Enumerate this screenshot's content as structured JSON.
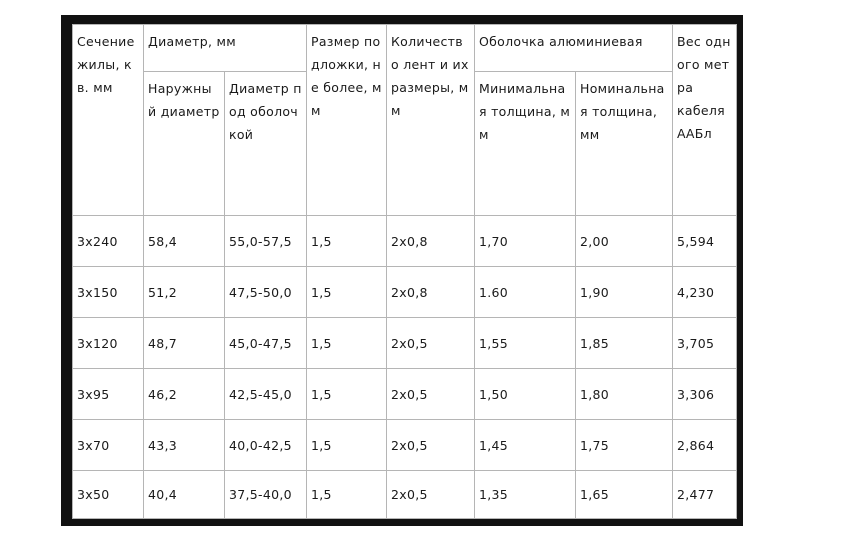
{
  "table": {
    "headers": {
      "section": "Сечение жилы, кв. мм",
      "diameter": "Диаметр, мм",
      "outer_diameter": "Наружный диаметр",
      "diameter_under_sheath": "Диаметр под оболочкой",
      "substrate_size": "Размер подложки, не более, мм",
      "tape_count": "Количество лент и их размеры, мм",
      "aluminum_sheath": "Оболочка алюминиевая",
      "min_thickness": "Минимальная толщина, мм",
      "nominal_thickness": "Номинальная толщина, мм",
      "weight": "Вес одного метра\nкабеля ААБл"
    },
    "rows": [
      [
        "3x240",
        "58,4",
        "55,0-57,5",
        "1,5",
        "2x0,8",
        "1,70",
        "2,00",
        "5,594"
      ],
      [
        "3x150",
        "51,2",
        "47,5-50,0",
        "1,5",
        "2x0,8",
        "1.60",
        "1,90",
        "4,230"
      ],
      [
        "3x120",
        "48,7",
        "45,0-47,5",
        "1,5",
        "2x0,5",
        "1,55",
        "1,85",
        "3,705"
      ],
      [
        "3x95",
        "46,2",
        "42,5-45,0",
        "1,5",
        "2x0,5",
        "1,50",
        "1,80",
        "3,306"
      ],
      [
        "3x70",
        "43,3",
        "40,0-42,5",
        "1,5",
        "2x0,5",
        "1,45",
        "1,75",
        "2,864"
      ],
      [
        "3x50",
        "40,4",
        "37,5-40,0",
        "1,5",
        "2x0,5",
        "1,35",
        "1,65",
        "2,477"
      ]
    ]
  }
}
